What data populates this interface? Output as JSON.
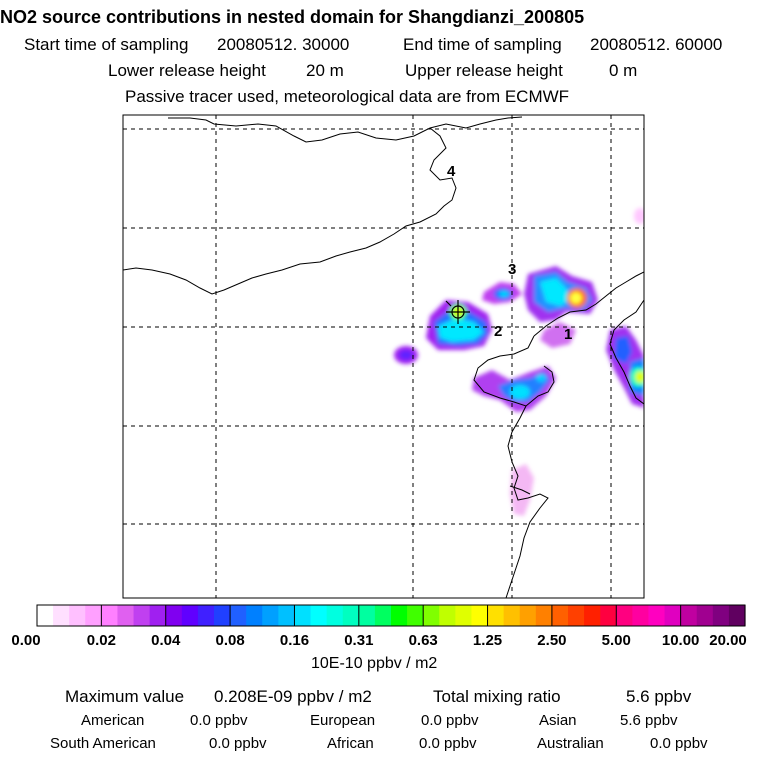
{
  "header": {
    "title": "NO2 source contributions in nested domain for Shangdianzi_200805",
    "start_label": "Start time of sampling",
    "start_value": "20080512. 30000",
    "end_label": "End time of sampling",
    "end_value": "20080512. 60000",
    "lower_label": "Lower release height",
    "lower_value": "20 m",
    "upper_label": "Upper release height",
    "upper_value": "0 m",
    "note": "Passive tracer used, meteorological data are from ECMWF"
  },
  "map": {
    "contour_labels": [
      "4",
      "3",
      "2",
      "1"
    ],
    "station_marker": "receptor-site"
  },
  "colorbar": {
    "labels": [
      "0.00",
      "0.02",
      "0.04",
      "0.08",
      "0.16",
      "0.31",
      "0.63",
      "1.25",
      "2.50",
      "5.00",
      "10.00",
      "20.00"
    ],
    "unit": "10E-10 ppbv / m2",
    "colors": [
      "#ffffff",
      "#ffe0ff",
      "#ffc0ff",
      "#ffa0ff",
      "#ff80ff",
      "#e060f0",
      "#c040f0",
      "#a020f0",
      "#8000f0",
      "#6000ff",
      "#4020ff",
      "#2040ff",
      "#2060ff",
      "#0080ff",
      "#00a0ff",
      "#00c0ff",
      "#00e0ff",
      "#00ffff",
      "#00ffe0",
      "#00ffc0",
      "#00ffa0",
      "#00ff60",
      "#00ff00",
      "#40ff00",
      "#80ff00",
      "#c0ff00",
      "#e0ff00",
      "#ffff00",
      "#ffe000",
      "#ffc000",
      "#ffa000",
      "#ff8000",
      "#ff6000",
      "#ff4000",
      "#ff2000",
      "#ff0040",
      "#ff0080",
      "#ff00a0",
      "#ff00c0",
      "#e000c0",
      "#c000a0",
      "#a00090",
      "#800080",
      "#600060"
    ]
  },
  "summary": {
    "max_label": "Maximum value",
    "max_value": "0.208E-09 ppbv / m2",
    "total_label": "Total mixing ratio",
    "total_value": "5.6 ppbv",
    "regions": [
      {
        "name": "American",
        "value": "0.0 ppbv"
      },
      {
        "name": "European",
        "value": "0.0 ppbv"
      },
      {
        "name": "Asian",
        "value": "5.6 ppbv"
      },
      {
        "name": "South American",
        "value": "0.0 ppbv"
      },
      {
        "name": "African",
        "value": "0.0 ppbv"
      },
      {
        "name": "Australian",
        "value": "0.0 ppbv"
      }
    ]
  }
}
